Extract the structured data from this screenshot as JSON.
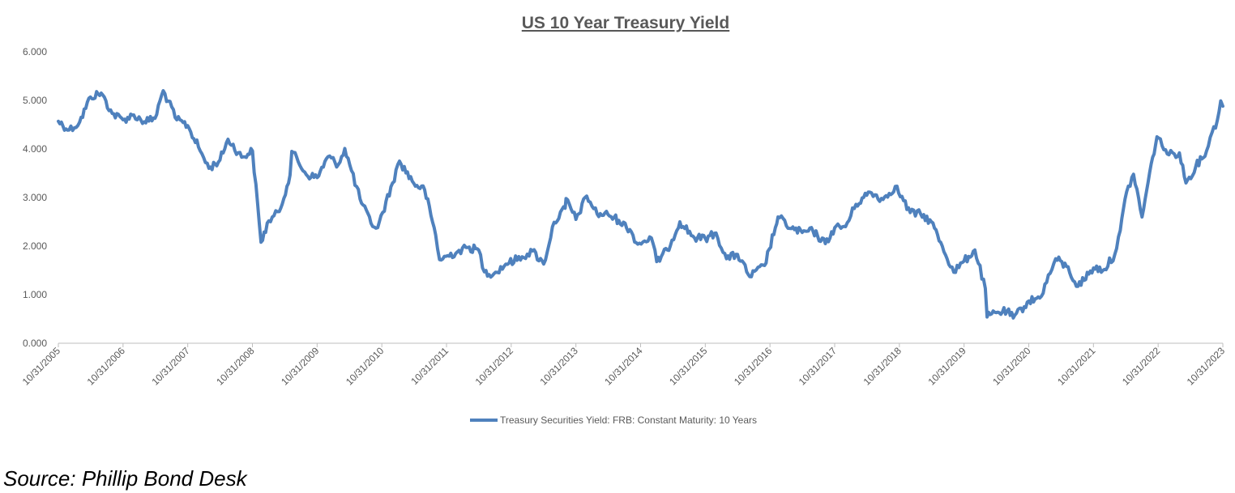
{
  "source_text": "Source: Phillip Bond Desk",
  "chart_data": {
    "type": "line",
    "title": "US 10 Year Treasury Yield",
    "xlabel": "",
    "ylabel": "",
    "ylim": [
      0,
      6
    ],
    "y_ticks": [
      "0.000",
      "1.000",
      "2.000",
      "3.000",
      "4.000",
      "5.000",
      "6.000"
    ],
    "x_ticks": [
      "10/31/2005",
      "10/31/2006",
      "10/31/2007",
      "10/31/2008",
      "10/31/2009",
      "10/31/2010",
      "10/31/2011",
      "10/31/2012",
      "10/31/2013",
      "10/31/2014",
      "10/31/2015",
      "10/31/2016",
      "10/31/2017",
      "10/31/2018",
      "10/31/2019",
      "10/31/2020",
      "10/31/2021",
      "10/31/2022",
      "10/31/2023"
    ],
    "x_start": "2005-10-31",
    "x_end": "2023-10-31",
    "grid": false,
    "legend_position": "bottom",
    "line_color": "#4F81BD",
    "series": [
      {
        "name": "Treasury Securities Yield: FRB: Constant Maturity: 10 Years",
        "x": [
          "2005-10-31",
          "2005-12-31",
          "2006-02-28",
          "2006-04-30",
          "2006-06-30",
          "2006-08-31",
          "2006-10-31",
          "2006-12-31",
          "2007-02-28",
          "2007-04-30",
          "2007-06-15",
          "2007-08-31",
          "2007-10-31",
          "2007-12-31",
          "2008-02-28",
          "2008-04-30",
          "2008-06-15",
          "2008-08-31",
          "2008-10-31",
          "2008-12-18",
          "2009-01-31",
          "2009-03-31",
          "2009-05-31",
          "2009-06-10",
          "2009-08-31",
          "2009-10-31",
          "2009-12-31",
          "2010-02-28",
          "2010-04-05",
          "2010-06-30",
          "2010-08-31",
          "2010-10-08",
          "2010-12-31",
          "2011-02-08",
          "2011-04-30",
          "2011-06-30",
          "2011-08-31",
          "2011-09-22",
          "2011-12-31",
          "2012-02-28",
          "2012-04-30",
          "2012-06-01",
          "2012-07-25",
          "2012-09-30",
          "2012-12-31",
          "2013-02-28",
          "2013-05-02",
          "2013-06-30",
          "2013-08-31",
          "2013-09-05",
          "2013-10-31",
          "2013-12-31",
          "2014-02-28",
          "2014-04-30",
          "2014-06-30",
          "2014-08-31",
          "2014-10-15",
          "2014-12-31",
          "2015-01-30",
          "2015-03-31",
          "2015-06-10",
          "2015-08-31",
          "2015-10-31",
          "2015-12-31",
          "2016-02-28",
          "2016-04-30",
          "2016-07-08",
          "2016-09-30",
          "2016-11-30",
          "2016-12-15",
          "2017-02-28",
          "2017-04-30",
          "2017-06-30",
          "2017-09-08",
          "2017-10-31",
          "2017-12-31",
          "2018-02-28",
          "2018-05-17",
          "2018-07-31",
          "2018-10-08",
          "2018-12-31",
          "2019-02-28",
          "2019-04-30",
          "2019-06-30",
          "2019-09-03",
          "2019-10-31",
          "2019-12-31",
          "2020-02-28",
          "2020-03-09",
          "2020-04-30",
          "2020-06-30",
          "2020-08-04",
          "2020-10-31",
          "2020-12-31",
          "2021-02-28",
          "2021-03-31",
          "2021-05-31",
          "2021-08-04",
          "2021-10-31",
          "2021-12-31",
          "2022-02-28",
          "2022-03-31",
          "2022-05-06",
          "2022-06-14",
          "2022-08-01",
          "2022-09-30",
          "2022-10-24",
          "2022-12-31",
          "2023-02-28",
          "2023-04-06",
          "2023-05-31",
          "2023-07-31",
          "2023-08-31",
          "2023-09-30",
          "2023-10-19",
          "2023-10-31"
        ],
        "values": [
          4.57,
          4.39,
          4.55,
          5.07,
          5.15,
          4.73,
          4.6,
          4.7,
          4.56,
          4.63,
          5.2,
          4.6,
          4.48,
          4.04,
          3.6,
          3.77,
          4.2,
          3.83,
          3.96,
          2.08,
          2.52,
          2.71,
          3.46,
          3.95,
          3.47,
          3.41,
          3.84,
          3.68,
          4.01,
          2.97,
          2.47,
          2.38,
          3.3,
          3.75,
          3.29,
          3.16,
          2.23,
          1.72,
          1.88,
          1.97,
          1.92,
          1.47,
          1.43,
          1.63,
          1.78,
          1.9,
          1.63,
          2.49,
          2.78,
          2.98,
          2.55,
          3.03,
          2.66,
          2.65,
          2.53,
          2.34,
          2.04,
          2.17,
          1.68,
          1.92,
          2.5,
          2.17,
          2.16,
          2.27,
          1.74,
          1.83,
          1.37,
          1.6,
          2.38,
          2.6,
          2.36,
          2.28,
          2.31,
          2.05,
          2.38,
          2.4,
          2.86,
          3.11,
          2.96,
          3.23,
          2.69,
          2.66,
          2.5,
          2.0,
          1.46,
          1.69,
          1.92,
          1.13,
          0.54,
          0.63,
          0.66,
          0.52,
          0.87,
          0.93,
          1.44,
          1.74,
          1.58,
          1.17,
          1.55,
          1.52,
          1.83,
          2.32,
          3.12,
          3.48,
          2.6,
          3.83,
          4.25,
          3.88,
          3.92,
          3.3,
          3.64,
          3.96,
          4.34,
          4.59,
          4.99,
          4.88
        ]
      }
    ]
  }
}
